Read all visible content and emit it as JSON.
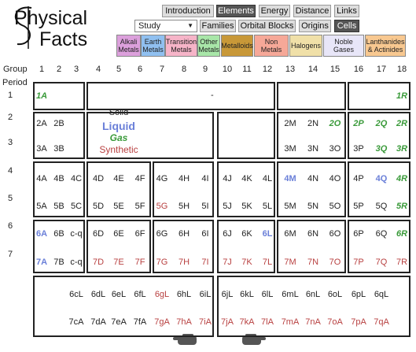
{
  "header": {
    "logo_line1": "Physical",
    "logo_line2": "Facts"
  },
  "nav": {
    "primary": [
      {
        "label": "Introduction",
        "active": false
      },
      {
        "label": "Elements",
        "active": true
      },
      {
        "label": "Energy",
        "active": false
      },
      {
        "label": "Distance",
        "active": false
      },
      {
        "label": "Links",
        "active": false
      }
    ],
    "select": "Study",
    "secondary": [
      {
        "label": "Families",
        "active": false
      },
      {
        "label": "Orbital Blocks",
        "active": false
      },
      {
        "label": "Origins",
        "active": false
      },
      {
        "label": "Cells",
        "active": true
      }
    ]
  },
  "categories_legend": [
    {
      "label": "Alkali Metals",
      "color": "#dca0dc"
    },
    {
      "label": "Earth Metals",
      "color": "#90c0f0"
    },
    {
      "label": "Transition Metals",
      "color": "#f6b4c8"
    },
    {
      "label": "Other Metals",
      "color": "#a8e6a8"
    },
    {
      "label": "Metalloids",
      "color": "#c89838"
    },
    {
      "label": "Non Metals",
      "color": "#f6a898"
    },
    {
      "label": "Halogens",
      "color": "#f0e0a8"
    },
    {
      "label": "Noble Gases",
      "color": "#e8e6f8"
    },
    {
      "label": "Lanthanides & Actinides",
      "color": "#f8c890"
    }
  ],
  "table": {
    "group_label": "Group",
    "groups": [
      "1",
      "2",
      "3",
      "4",
      "5",
      "6",
      "7",
      "8",
      "9",
      "10",
      "11",
      "12",
      "13",
      "14",
      "15",
      "16",
      "17",
      "18"
    ],
    "period_label": "Period",
    "state_legend": [
      {
        "key": "solid",
        "label": "Solid",
        "color": "#222222"
      },
      {
        "key": "liquid",
        "label": "Liquid",
        "color": "#6a7fd8"
      },
      {
        "key": "gas",
        "label": "Gas",
        "color": "#3a9a3a"
      },
      {
        "key": "synthetic",
        "label": "Synthetic",
        "color": "#b84040"
      }
    ],
    "periods": [
      {
        "label": "1",
        "middle_text": "-",
        "cells": [
          {
            "text": "1A",
            "state": "gas"
          },
          null,
          null,
          null,
          null,
          null,
          null,
          null,
          null,
          null,
          null,
          null,
          null,
          null,
          null,
          null,
          null,
          {
            "text": "1R",
            "state": "gas"
          }
        ]
      },
      {
        "label": "2",
        "cells": [
          {
            "text": "2A",
            "state": "solid"
          },
          {
            "text": "2B",
            "state": "solid"
          },
          null,
          null,
          null,
          null,
          null,
          null,
          null,
          null,
          null,
          null,
          {
            "text": "2M",
            "state": "solid"
          },
          {
            "text": "2N",
            "state": "solid"
          },
          {
            "text": "2O",
            "state": "gas"
          },
          {
            "text": "2P",
            "state": "gas"
          },
          {
            "text": "2Q",
            "state": "gas"
          },
          {
            "text": "2R",
            "state": "gas"
          }
        ]
      },
      {
        "label": "3",
        "cells": [
          {
            "text": "3A",
            "state": "solid"
          },
          {
            "text": "3B",
            "state": "solid"
          },
          null,
          null,
          null,
          null,
          null,
          null,
          null,
          null,
          null,
          null,
          {
            "text": "3M",
            "state": "solid"
          },
          {
            "text": "3N",
            "state": "solid"
          },
          {
            "text": "3O",
            "state": "solid"
          },
          {
            "text": "3P",
            "state": "solid"
          },
          {
            "text": "3Q",
            "state": "gas"
          },
          {
            "text": "3R",
            "state": "gas"
          }
        ]
      },
      {
        "label": "4",
        "cells": [
          {
            "text": "4A",
            "state": "solid"
          },
          {
            "text": "4B",
            "state": "solid"
          },
          {
            "text": "4C",
            "state": "solid"
          },
          {
            "text": "4D",
            "state": "solid"
          },
          {
            "text": "4E",
            "state": "solid"
          },
          {
            "text": "4F",
            "state": "solid"
          },
          {
            "text": "4G",
            "state": "solid"
          },
          {
            "text": "4H",
            "state": "solid"
          },
          {
            "text": "4I",
            "state": "solid"
          },
          {
            "text": "4J",
            "state": "solid"
          },
          {
            "text": "4K",
            "state": "solid"
          },
          {
            "text": "4L",
            "state": "solid"
          },
          {
            "text": "4M",
            "state": "liquid"
          },
          {
            "text": "4N",
            "state": "solid"
          },
          {
            "text": "4O",
            "state": "solid"
          },
          {
            "text": "4P",
            "state": "solid"
          },
          {
            "text": "4Q",
            "state": "liquid"
          },
          {
            "text": "4R",
            "state": "gas"
          }
        ]
      },
      {
        "label": "5",
        "cells": [
          {
            "text": "5A",
            "state": "solid"
          },
          {
            "text": "5B",
            "state": "solid"
          },
          {
            "text": "5C",
            "state": "solid"
          },
          {
            "text": "5D",
            "state": "solid"
          },
          {
            "text": "5E",
            "state": "solid"
          },
          {
            "text": "5F",
            "state": "solid"
          },
          {
            "text": "5G",
            "state": "synthetic"
          },
          {
            "text": "5H",
            "state": "solid"
          },
          {
            "text": "5I",
            "state": "solid"
          },
          {
            "text": "5J",
            "state": "solid"
          },
          {
            "text": "5K",
            "state": "solid"
          },
          {
            "text": "5L",
            "state": "solid"
          },
          {
            "text": "5M",
            "state": "solid"
          },
          {
            "text": "5N",
            "state": "solid"
          },
          {
            "text": "5O",
            "state": "solid"
          },
          {
            "text": "5P",
            "state": "solid"
          },
          {
            "text": "5Q",
            "state": "solid"
          },
          {
            "text": "5R",
            "state": "gas"
          }
        ]
      },
      {
        "label": "6",
        "cells": [
          {
            "text": "6A",
            "state": "liquid"
          },
          {
            "text": "6B",
            "state": "solid"
          },
          {
            "text": "c-q",
            "state": "solid"
          },
          {
            "text": "6D",
            "state": "solid"
          },
          {
            "text": "6E",
            "state": "solid"
          },
          {
            "text": "6F",
            "state": "solid"
          },
          {
            "text": "6G",
            "state": "solid"
          },
          {
            "text": "6H",
            "state": "solid"
          },
          {
            "text": "6I",
            "state": "solid"
          },
          {
            "text": "6J",
            "state": "solid"
          },
          {
            "text": "6K",
            "state": "solid"
          },
          {
            "text": "6L",
            "state": "liquid"
          },
          {
            "text": "6M",
            "state": "solid"
          },
          {
            "text": "6N",
            "state": "solid"
          },
          {
            "text": "6O",
            "state": "solid"
          },
          {
            "text": "6P",
            "state": "solid"
          },
          {
            "text": "6Q",
            "state": "solid"
          },
          {
            "text": "6R",
            "state": "gas"
          }
        ]
      },
      {
        "label": "7",
        "cells": [
          {
            "text": "7A",
            "state": "liquid"
          },
          {
            "text": "7B",
            "state": "solid"
          },
          {
            "text": "c-q",
            "state": "solid"
          },
          {
            "text": "7D",
            "state": "synthetic"
          },
          {
            "text": "7E",
            "state": "synthetic"
          },
          {
            "text": "7F",
            "state": "synthetic"
          },
          {
            "text": "7G",
            "state": "synthetic"
          },
          {
            "text": "7H",
            "state": "synthetic"
          },
          {
            "text": "7I",
            "state": "synthetic"
          },
          {
            "text": "7J",
            "state": "synthetic"
          },
          {
            "text": "7K",
            "state": "synthetic"
          },
          {
            "text": "7L",
            "state": "synthetic"
          },
          {
            "text": "7M",
            "state": "synthetic"
          },
          {
            "text": "7N",
            "state": "synthetic"
          },
          {
            "text": "7O",
            "state": "synthetic"
          },
          {
            "text": "7P",
            "state": "synthetic"
          },
          {
            "text": "7Q",
            "state": "synthetic"
          },
          {
            "text": "7R",
            "state": "synthetic"
          }
        ]
      }
    ],
    "lanthanide_rows": [
      [
        null,
        null,
        {
          "text": "6cL",
          "state": "solid"
        },
        {
          "text": "6dL",
          "state": "solid"
        },
        {
          "text": "6eL",
          "state": "solid"
        },
        {
          "text": "6fL",
          "state": "solid"
        },
        {
          "text": "6gL",
          "state": "synthetic"
        },
        {
          "text": "6hL",
          "state": "solid"
        },
        {
          "text": "6iL",
          "state": "solid"
        },
        {
          "text": "6jL",
          "state": "solid"
        },
        {
          "text": "6kL",
          "state": "solid"
        },
        {
          "text": "6lL",
          "state": "solid"
        },
        {
          "text": "6mL",
          "state": "solid"
        },
        {
          "text": "6nL",
          "state": "solid"
        },
        {
          "text": "6oL",
          "state": "solid"
        },
        {
          "text": "6pL",
          "state": "solid"
        },
        {
          "text": "6qL",
          "state": "solid"
        },
        null
      ],
      [
        null,
        null,
        {
          "text": "7cA",
          "state": "solid"
        },
        {
          "text": "7dA",
          "state": "solid"
        },
        {
          "text": "7eA",
          "state": "solid"
        },
        {
          "text": "7fA",
          "state": "solid"
        },
        {
          "text": "7gA",
          "state": "synthetic"
        },
        {
          "text": "7hA",
          "state": "synthetic"
        },
        {
          "text": "7iA",
          "state": "synthetic"
        },
        {
          "text": "7jA",
          "state": "synthetic"
        },
        {
          "text": "7kA",
          "state": "synthetic"
        },
        {
          "text": "7lA",
          "state": "synthetic"
        },
        {
          "text": "7mA",
          "state": "synthetic"
        },
        {
          "text": "7nA",
          "state": "synthetic"
        },
        {
          "text": "7oA",
          "state": "synthetic"
        },
        {
          "text": "7pA",
          "state": "synthetic"
        },
        {
          "text": "7qA",
          "state": "synthetic"
        },
        null
      ]
    ]
  }
}
